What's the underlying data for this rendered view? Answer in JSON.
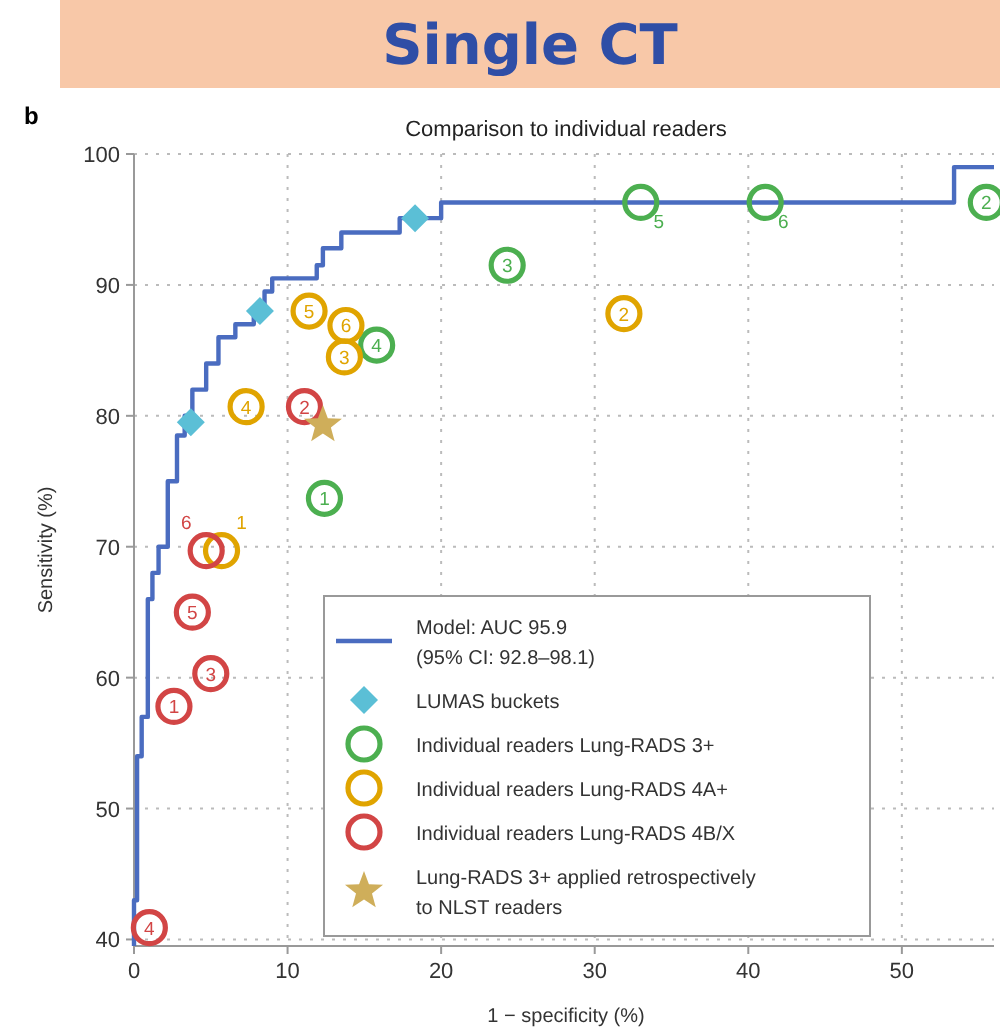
{
  "chart_data": {
    "type": "scatter",
    "title": "Single CT",
    "subtitle": "Comparison to individual readers",
    "xlabel": "1 − specificity (%)",
    "ylabel": "Sensitivity (%)",
    "xlim": [
      0,
      56
    ],
    "ylim": [
      39.5,
      100
    ],
    "xticks": [
      0,
      10,
      20,
      30,
      40,
      50
    ],
    "yticks": [
      40,
      50,
      60,
      70,
      80,
      90,
      100
    ],
    "grid": true,
    "legend": "bottom right",
    "series": [
      {
        "name": "Model: AUC 95.9\n(95% CI: 92.8–98.1)",
        "type": "line",
        "color": "#4a6cc0",
        "marker": "none",
        "line_style": "solid",
        "x": [
          0,
          0,
          0.2,
          0.2,
          0.5,
          0.5,
          0.9,
          0.9,
          1.2,
          1.2,
          1.6,
          1.6,
          2.2,
          2.2,
          2.8,
          2.8,
          3.3,
          3.3,
          3.8,
          3.8,
          4.7,
          4.7,
          5.5,
          5.5,
          6.6,
          6.6,
          7.8,
          7.8,
          8.5,
          8.5,
          9.0,
          9.0,
          11.9,
          11.9,
          12.3,
          12.3,
          13.5,
          13.5,
          17.3,
          17.3,
          20,
          20,
          53.4,
          53.4,
          56
        ],
        "values": [
          39.5,
          43,
          43,
          54,
          54,
          57,
          57,
          66,
          66,
          68,
          68,
          70,
          70,
          75,
          75,
          78.5,
          78.5,
          80,
          80,
          82,
          82,
          84,
          84,
          86,
          86,
          87,
          87,
          88,
          88,
          89.5,
          89.5,
          90.5,
          90.5,
          91.5,
          91.5,
          92.8,
          92.8,
          94,
          94,
          95.1,
          95.1,
          96.3,
          96.3,
          99,
          99
        ]
      },
      {
        "name": "LUMAS buckets",
        "type": "scatter",
        "color": "#5bbfd6",
        "marker": "diamond",
        "x": [
          3.7,
          8.2,
          18.3
        ],
        "values": [
          79.5,
          88.0,
          95.1
        ]
      },
      {
        "name": "Individual readers Lung-RADS 3+",
        "type": "scatter",
        "color": "#4caf50",
        "marker": "circle",
        "x": [
          12.4,
          55.5,
          24.3,
          15.8,
          33.0,
          41.1
        ],
        "values": [
          73.7,
          96.3,
          91.5,
          85.4,
          96.3,
          96.3
        ]
      },
      {
        "name": "Individual readers Lung-RADS 4A+",
        "type": "scatter",
        "color": "#e0a400",
        "marker": "circle",
        "x": [
          5.7,
          31.9,
          13.7,
          7.3,
          11.4,
          13.8
        ],
        "values": [
          69.7,
          87.8,
          84.5,
          80.7,
          88.0,
          86.9
        ]
      },
      {
        "name": "Individual readers Lung-RADS 4B/X",
        "type": "scatter",
        "color": "#d24545",
        "marker": "circle",
        "x": [
          2.6,
          11.1,
          5.0,
          1.0,
          3.8,
          4.7
        ],
        "values": [
          57.8,
          80.7,
          60.3,
          40.9,
          65.0,
          69.7
        ]
      },
      {
        "name": "Lung-RADS 3+ applied retrospectively\nto NLST readers",
        "type": "scatter",
        "color": "#cfae5a",
        "marker": "star",
        "x": [
          12.3
        ],
        "values": [
          79.3
        ]
      }
    ],
    "annotations": [
      "b",
      {
        "text": "1",
        "x": 12.4,
        "y": 73.7
      },
      {
        "text": "2",
        "x": 55.5,
        "y": 96.3
      },
      {
        "text": "3",
        "x": 24.3,
        "y": 91.5
      },
      {
        "text": "4",
        "x": 15.8,
        "y": 85.4
      },
      {
        "text": "5",
        "x": 33.0,
        "y": 96.3
      },
      {
        "text": "6",
        "x": 41.1,
        "y": 96.3
      },
      {
        "text": "1",
        "x": 5.7,
        "y": 69.7
      },
      {
        "text": "2",
        "x": 31.9,
        "y": 87.8
      },
      {
        "text": "3",
        "x": 13.7,
        "y": 84.5
      },
      {
        "text": "4",
        "x": 7.3,
        "y": 80.7
      },
      {
        "text": "5",
        "x": 11.4,
        "y": 88.0
      },
      {
        "text": "6",
        "x": 13.8,
        "y": 86.9
      },
      {
        "text": "1",
        "x": 2.6,
        "y": 57.8
      },
      {
        "text": "2",
        "x": 11.1,
        "y": 80.7
      },
      {
        "text": "3",
        "x": 5.0,
        "y": 60.3
      },
      {
        "text": "4",
        "x": 1.0,
        "y": 40.9
      },
      {
        "text": "5",
        "x": 3.8,
        "y": 65.0
      },
      {
        "text": "6",
        "x": 4.7,
        "y": 69.7
      }
    ]
  }
}
